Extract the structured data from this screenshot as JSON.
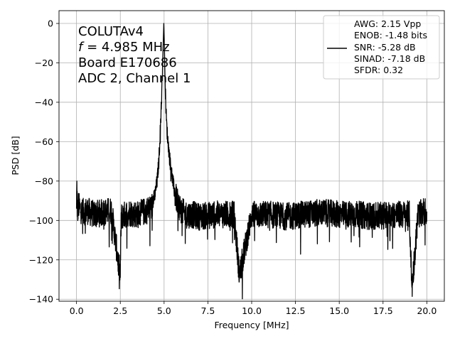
{
  "chart_data": {
    "type": "line",
    "xlabel": "Frequency [MHz]",
    "ylabel": "PSD [dB]",
    "xlim": [
      -1.0,
      21.0
    ],
    "ylim": [
      -141,
      6.5
    ],
    "xticks": [
      0.0,
      2.5,
      5.0,
      7.5,
      10.0,
      12.5,
      15.0,
      17.5,
      20.0
    ],
    "xtick_labels": [
      "0.0",
      "2.5",
      "5.0",
      "7.5",
      "10.0",
      "12.5",
      "15.0",
      "17.5",
      "20.0"
    ],
    "yticks": [
      0,
      -20,
      -40,
      -60,
      -80,
      -100,
      -120,
      -140
    ],
    "ytick_labels": [
      "0",
      "−20",
      "−40",
      "−60",
      "−80",
      "−100",
      "−120",
      "−140"
    ],
    "grid": true,
    "legend_position": "top-right",
    "annotation": {
      "line1": "COLUTAv4",
      "line2_symbol": "f",
      "line2_rest": " = 4.985 MHz",
      "line3": "Board E170686",
      "line4": "ADC 2, Channel 1"
    },
    "legend": {
      "lines": [
        "AWG: 2.15 Vpp",
        "ENOB: -1.48 bits",
        "SNR: -5.28 dB",
        "SINAD: -7.18 dB",
        "SFDR: 0.32"
      ]
    },
    "series": [
      {
        "color": "#000000",
        "x": [
          0.0,
          0.02,
          0.05,
          0.1,
          0.3,
          0.6,
          1.0,
          1.5,
          2.0,
          2.5,
          2.55,
          3.0,
          3.5,
          4.0,
          4.3,
          4.5,
          4.6,
          4.7,
          4.75,
          4.8,
          4.85,
          4.9,
          4.95,
          4.985,
          5.02,
          5.06,
          5.1,
          5.15,
          5.2,
          5.3,
          5.4,
          5.5,
          5.6,
          5.8,
          6.0,
          6.2,
          6.6,
          7.0,
          8.0,
          9.0,
          9.3,
          10.0,
          11.0,
          12.0,
          13.0,
          14.0,
          15.0,
          16.0,
          17.0,
          18.0,
          19.0,
          19.15,
          19.5,
          20.0
        ],
        "y": [
          -94,
          -80,
          -98,
          -92,
          -96,
          -95,
          -97,
          -96,
          -95,
          -129,
          -98,
          -96,
          -97,
          -95,
          -93,
          -86,
          -80,
          -70,
          -60,
          -50,
          -40,
          -25,
          -10,
          0,
          -12,
          -30,
          -42,
          -52,
          -58,
          -67,
          -74,
          -80,
          -86,
          -92,
          -95,
          -97,
          -97,
          -98,
          -97,
          -97,
          -128,
          -97,
          -97,
          -98,
          -97,
          -96,
          -97,
          -97,
          -98,
          -97,
          -97,
          -134,
          -97,
          -95
        ]
      }
    ]
  }
}
